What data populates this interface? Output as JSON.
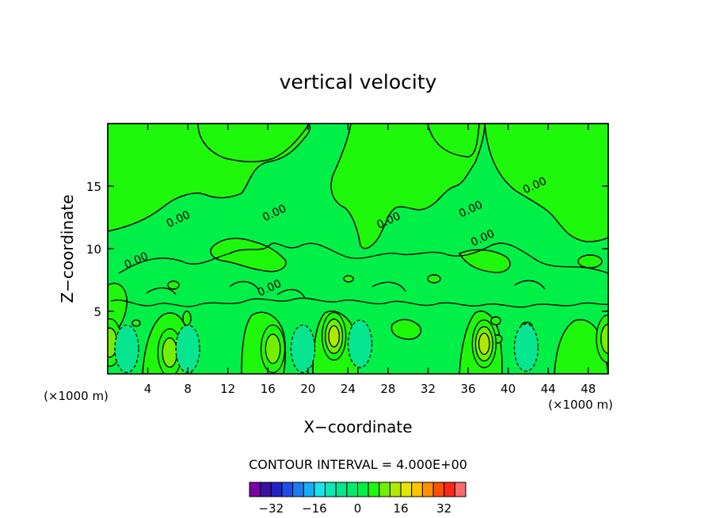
{
  "chart_data": {
    "type": "heatmap",
    "subtype": "filled-contour",
    "title": "vertical velocity",
    "xlabel": "X−coordinate",
    "ylabel": "Z−coordinate",
    "x_unit_left": "(×1000 m)",
    "x_unit_right": "(×1000 m)",
    "xlim": [
      0,
      50
    ],
    "ylim": [
      0,
      20
    ],
    "x_ticks": [
      4,
      8,
      12,
      16,
      20,
      24,
      28,
      32,
      36,
      40,
      44,
      48
    ],
    "y_ticks": [
      5,
      10,
      15
    ],
    "contour_interval_text": "CONTOUR INTERVAL = 4.000E+00",
    "contour_interval": 4,
    "contour_labels": [
      {
        "text": "0.00",
        "x": 7.2,
        "y": 12.1
      },
      {
        "text": "0.00",
        "x": 3.0,
        "y": 8.8
      },
      {
        "text": "0.00",
        "x": 16.8,
        "y": 12.6
      },
      {
        "text": "0.00",
        "x": 28.2,
        "y": 12.0
      },
      {
        "text": "0.00",
        "x": 36.4,
        "y": 12.9
      },
      {
        "text": "0.00",
        "x": 37.6,
        "y": 10.6
      },
      {
        "text": "0.00",
        "x": 42.8,
        "y": 14.8
      },
      {
        "text": "0.00",
        "x": 16.3,
        "y": 6.6
      }
    ],
    "features": [
      {
        "x": 22.6,
        "y": 3.0,
        "value": 12
      },
      {
        "x": 37.6,
        "y": 2.4,
        "value": 12
      },
      {
        "x": 6.2,
        "y": 1.7,
        "value": 8
      },
      {
        "x": 16.5,
        "y": 2.0,
        "value": 8
      },
      {
        "x": 0.2,
        "y": 2.5,
        "value": 8
      },
      {
        "x": 50.0,
        "y": 2.8,
        "value": 8
      },
      {
        "x": 1.9,
        "y": 2.0,
        "value": -4
      },
      {
        "x": 19.5,
        "y": 2.0,
        "value": -4
      },
      {
        "x": 25.2,
        "y": 2.4,
        "value": -4
      },
      {
        "x": 41.8,
        "y": 2.1,
        "value": -4
      },
      {
        "x": 8.0,
        "y": 2.0,
        "value": -4
      }
    ],
    "colorbar": {
      "boundaries": [
        -40,
        -36,
        -32,
        -28,
        -24,
        -20,
        -16,
        -12,
        -8,
        -4,
        0,
        4,
        8,
        12,
        16,
        20,
        24,
        28,
        32,
        36,
        40
      ],
      "colors": [
        "#7a05a5",
        "#3c10a0",
        "#1f22c8",
        "#1f4ce6",
        "#1c7df0",
        "#18aef5",
        "#1ae3ee",
        "#0ee8b8",
        "#06e690",
        "#00ec6a",
        "#00f048",
        "#1ef80a",
        "#72f000",
        "#b0e800",
        "#e5e600",
        "#ffc400",
        "#ff9000",
        "#ff5000",
        "#ff2818",
        "#ff6a6a"
      ],
      "tick_labels": [
        "−32",
        "−16",
        "0",
        "16",
        "32"
      ],
      "tick_values": [
        -32,
        -16,
        0,
        16,
        32
      ]
    },
    "grid": false
  }
}
